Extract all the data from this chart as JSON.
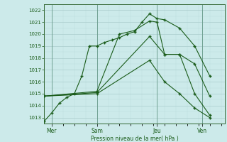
{
  "xlabel": "Pression niveau de la mer( hPa )",
  "bg_color": "#cceaea",
  "grid_color_major": "#aacccc",
  "grid_color_minor": "#bbdddd",
  "line_color": "#1a5c1a",
  "ylim": [
    1012.5,
    1022.5
  ],
  "yticks": [
    1013,
    1014,
    1015,
    1016,
    1017,
    1018,
    1019,
    1020,
    1021,
    1022
  ],
  "xlim": [
    0,
    12
  ],
  "day_labels": [
    "Mer",
    "Sam",
    "Jeu",
    "Ven"
  ],
  "day_positions": [
    0.5,
    3.5,
    7.5,
    10.5
  ],
  "vline_positions": [
    0.5,
    3.5,
    7.5,
    10.5
  ],
  "series": [
    {
      "x": [
        0,
        0.5,
        1,
        1.5,
        2,
        2.5,
        3,
        3.5,
        4,
        4.5,
        5,
        5.5,
        6,
        6.5,
        7,
        7.5,
        8,
        9,
        10,
        11
      ],
      "y": [
        1012.7,
        1013.4,
        1014.2,
        1014.7,
        1015.0,
        1016.5,
        1019.0,
        1019.0,
        1019.3,
        1019.5,
        1019.7,
        1020.0,
        1020.2,
        1021.0,
        1021.7,
        1021.3,
        1021.2,
        1020.5,
        1019.0,
        1016.5
      ]
    },
    {
      "x": [
        0,
        3.5,
        5,
        6,
        7,
        7.5,
        8,
        9,
        10,
        11
      ],
      "y": [
        1014.8,
        1015.2,
        1020.0,
        1020.3,
        1021.1,
        1021.0,
        1018.3,
        1018.3,
        1017.5,
        1014.8
      ]
    },
    {
      "x": [
        0,
        3.5,
        7,
        8,
        9,
        10,
        11
      ],
      "y": [
        1014.8,
        1015.1,
        1019.8,
        1018.3,
        1018.3,
        1015.0,
        1013.2
      ]
    },
    {
      "x": [
        0,
        3.5,
        7,
        8,
        9,
        10,
        11
      ],
      "y": [
        1014.8,
        1015.0,
        1017.8,
        1016.0,
        1015.0,
        1013.8,
        1013.0
      ]
    }
  ]
}
